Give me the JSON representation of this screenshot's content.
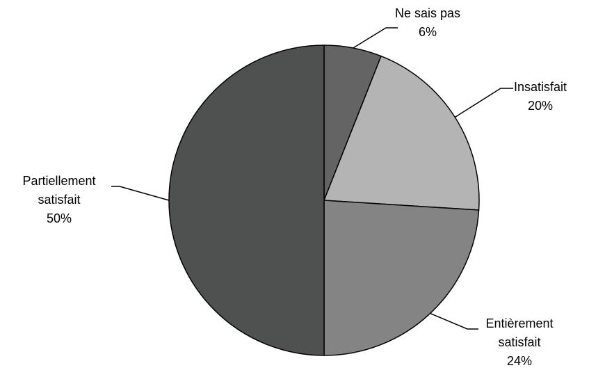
{
  "chart_data": {
    "type": "pie",
    "categories": [
      "Ne sais pas",
      "Insatisfait",
      "Entièrement satisfait",
      "Partiellement satisfait"
    ],
    "values": [
      6,
      20,
      24,
      50
    ],
    "value_labels": [
      "6%",
      "20%",
      "24%",
      "50%"
    ],
    "colors": [
      "#646464",
      "#b4b4b4",
      "#838483",
      "#4f5150"
    ]
  }
}
